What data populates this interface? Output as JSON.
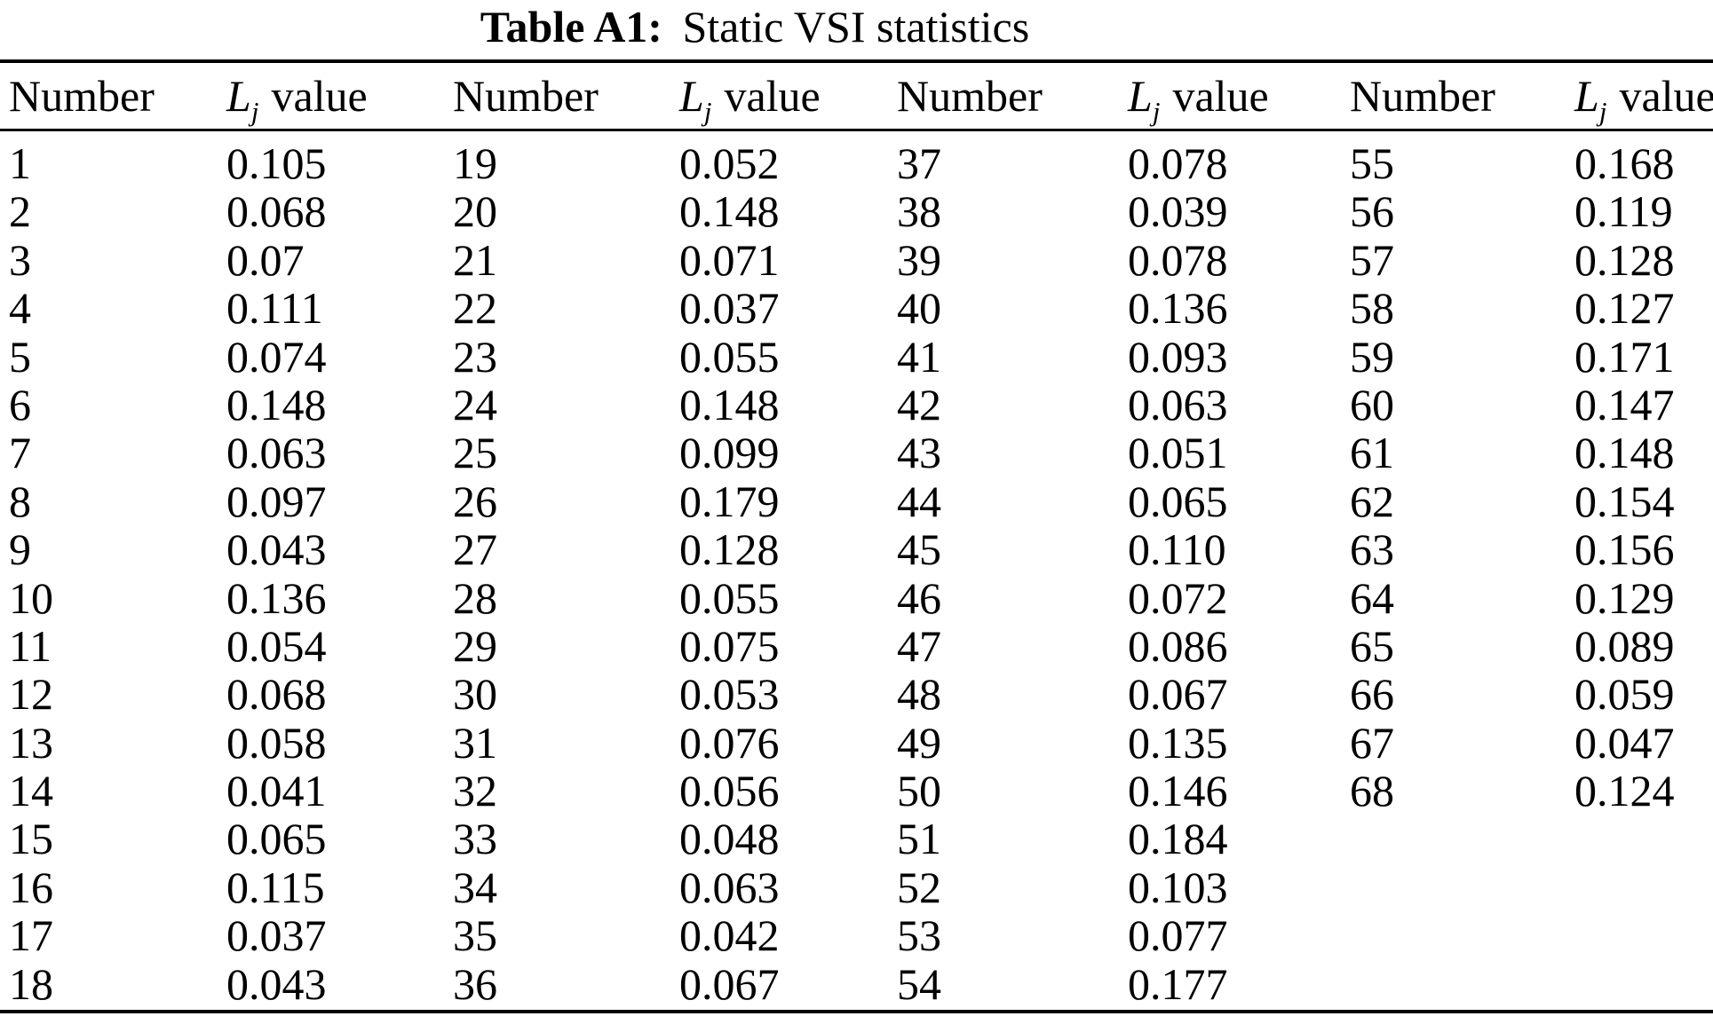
{
  "page": {
    "background": "#ffffff",
    "text_color": "#000000"
  },
  "title": {
    "label_bold": "Table A1:",
    "caption": "Static VSI statistics"
  },
  "table": {
    "header": {
      "number": "Number",
      "value_main": "L",
      "value_sub": "j",
      "value_rest": "value"
    },
    "groups": [
      {
        "numbers": [
          "1",
          "2",
          "3",
          "4",
          "5",
          "6",
          "7",
          "8",
          "9",
          "10",
          "11",
          "12",
          "13",
          "14",
          "15",
          "16",
          "17",
          "18"
        ],
        "values": [
          "0.105",
          "0.068",
          "0.07",
          "0.111",
          "0.074",
          "0.148",
          "0.063",
          "0.097",
          "0.043",
          "0.136",
          "0.054",
          "0.068",
          "0.058",
          "0.041",
          "0.065",
          "0.115",
          "0.037",
          "0.043"
        ]
      },
      {
        "numbers": [
          "19",
          "20",
          "21",
          "22",
          "23",
          "24",
          "25",
          "26",
          "27",
          "28",
          "29",
          "30",
          "31",
          "32",
          "33",
          "34",
          "35",
          "36"
        ],
        "values": [
          "0.052",
          "0.148",
          "0.071",
          "0.037",
          "0.055",
          "0.148",
          "0.099",
          "0.179",
          "0.128",
          "0.055",
          "0.075",
          "0.053",
          "0.076",
          "0.056",
          "0.048",
          "0.063",
          "0.042",
          "0.067"
        ]
      },
      {
        "numbers": [
          "37",
          "38",
          "39",
          "40",
          "41",
          "42",
          "43",
          "44",
          "45",
          "46",
          "47",
          "48",
          "49",
          "50",
          "51",
          "52",
          "53",
          "54"
        ],
        "values": [
          "0.078",
          "0.039",
          "0.078",
          "0.136",
          "0.093",
          "0.063",
          "0.051",
          "0.065",
          "0.110",
          "0.072",
          "0.086",
          "0.067",
          "0.135",
          "0.146",
          "0.184",
          "0.103",
          "0.077",
          "0.177"
        ]
      },
      {
        "numbers": [
          "55",
          "56",
          "57",
          "58",
          "59",
          "60",
          "61",
          "62",
          "63",
          "64",
          "65",
          "66",
          "67",
          "68"
        ],
        "values": [
          "0.168",
          "0.119",
          "0.128",
          "0.127",
          "0.171",
          "0.147",
          "0.148",
          "0.154",
          "0.156",
          "0.129",
          "0.089",
          "0.059",
          "0.047",
          "0.124"
        ]
      }
    ]
  }
}
